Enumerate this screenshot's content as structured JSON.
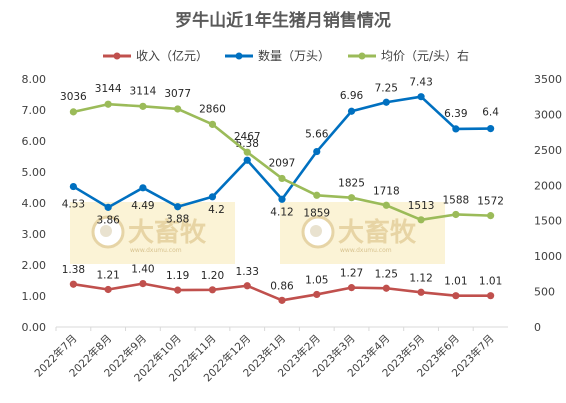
{
  "chart_data": {
    "type": "line",
    "title": "罗牛山近1年生猪月销售情况",
    "categories": [
      "2022年7月",
      "2022年8月",
      "2022年9月",
      "2022年10月",
      "2022年11月",
      "2022年12月",
      "2023年1月",
      "2023年2月",
      "2023年3月",
      "2023年4月",
      "2023年5月",
      "2023年6月",
      "2023年7月"
    ],
    "series": [
      {
        "name": "收入（亿元）",
        "axis": "left",
        "color": "#c0504d",
        "values": [
          1.38,
          1.21,
          1.4,
          1.19,
          1.2,
          1.33,
          0.86,
          1.05,
          1.27,
          1.25,
          1.12,
          1.01,
          1.01
        ],
        "labels": [
          "1.38",
          "1.21",
          "1.40",
          "1.19",
          "1.20",
          "1.33",
          "0.86",
          "1.05",
          "1.27",
          "1.25",
          "1.12",
          "1.01",
          "1.01"
        ]
      },
      {
        "name": "数量（万头）",
        "axis": "left",
        "color": "#0070c0",
        "values": [
          4.53,
          3.86,
          4.49,
          3.88,
          4.2,
          5.38,
          4.12,
          5.66,
          6.96,
          7.25,
          7.43,
          6.39,
          6.4
        ],
        "labels": [
          "4.53",
          "3.86",
          "4.49",
          "3.88",
          "4.2",
          "5.38",
          "4.12",
          "5.66",
          "6.96",
          "7.25",
          "7.43",
          "6.39",
          "6.4"
        ]
      },
      {
        "name": "均价（元/头）右",
        "axis": "right",
        "color": "#9bbb59",
        "values": [
          3036,
          3144,
          3114,
          3077,
          2860,
          2467,
          2097,
          1859,
          1825,
          1718,
          1513,
          1588,
          1572
        ],
        "labels": [
          "3036",
          "3144",
          "3114",
          "3077",
          "2860",
          "2467",
          "2097",
          "1859",
          "1825",
          "1718",
          "1513",
          "1588",
          "1572"
        ]
      }
    ],
    "y_left": {
      "range": [
        0,
        8
      ],
      "ticks": [
        "0.00",
        "1.00",
        "2.00",
        "3.00",
        "4.00",
        "5.00",
        "6.00",
        "7.00",
        "8.00"
      ]
    },
    "y_right": {
      "range": [
        0,
        3500
      ],
      "ticks": [
        "0",
        "500",
        "1000",
        "1500",
        "2000",
        "2500",
        "3000",
        "3500"
      ]
    },
    "legend_position": "top",
    "grid": false
  },
  "watermark": {
    "brand": "大畜牧",
    "url": "www.dxumu.com"
  }
}
